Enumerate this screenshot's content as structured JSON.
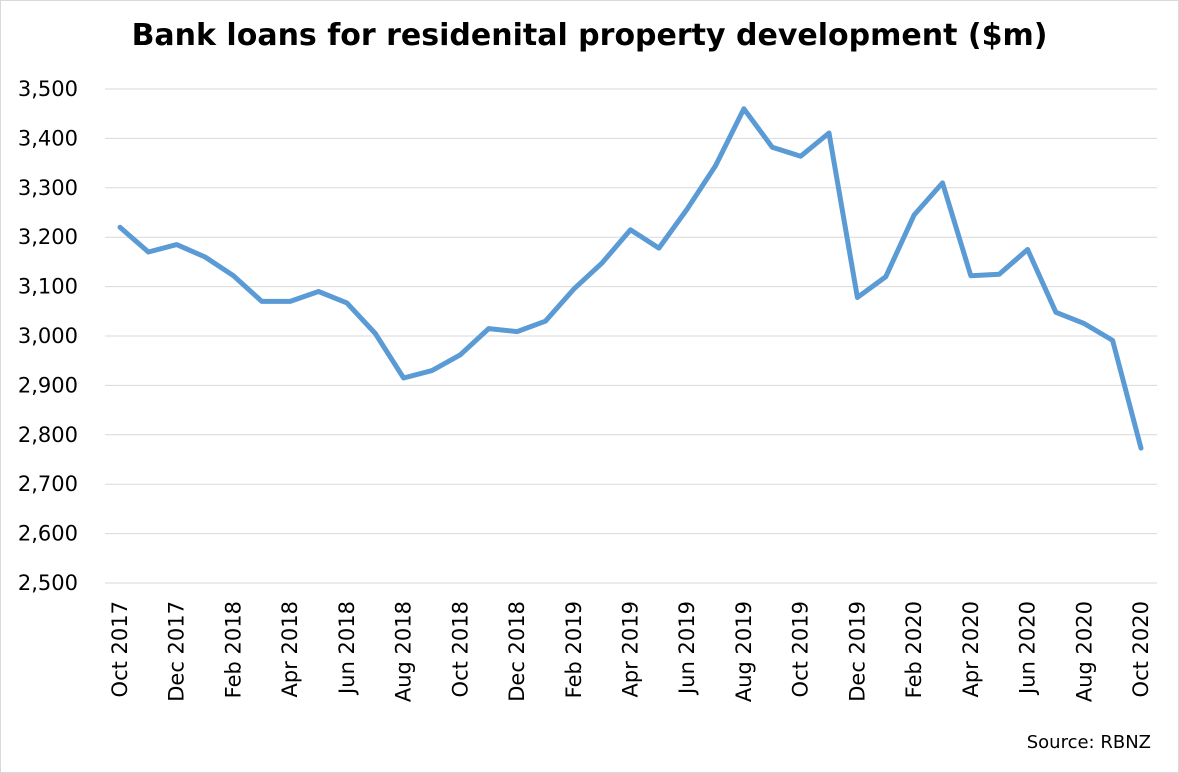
{
  "chart_data": {
    "type": "line",
    "title": "Bank loans for residenital property development ($m)",
    "source": "Source: RBNZ",
    "xlabel": "",
    "ylabel": "",
    "ylim": [
      2500,
      3500
    ],
    "ytick_step": 100,
    "ytick_labels": [
      "2,500",
      "2,600",
      "2,700",
      "2,800",
      "2,900",
      "3,000",
      "3,100",
      "3,200",
      "3,300",
      "3,400",
      "3,500"
    ],
    "grid": "horizontal",
    "line_color": "#5b9bd5",
    "x": [
      "Oct 2017",
      "Nov 2017",
      "Dec 2017",
      "Jan 2018",
      "Feb 2018",
      "Mar 2018",
      "Apr 2018",
      "May 2018",
      "Jun 2018",
      "Jul 2018",
      "Aug 2018",
      "Sep 2018",
      "Oct 2018",
      "Nov 2018",
      "Dec 2018",
      "Jan 2019",
      "Feb 2019",
      "Mar 2019",
      "Apr 2019",
      "May 2019",
      "Jun 2019",
      "Jul 2019",
      "Aug 2019",
      "Sep 2019",
      "Oct 2019",
      "Nov 2019",
      "Dec 2019",
      "Jan 2020",
      "Feb 2020",
      "Mar 2020",
      "Apr 2020",
      "May 2020",
      "Jun 2020",
      "Jul 2020",
      "Aug 2020",
      "Sep 2020",
      "Oct 2020"
    ],
    "x_tick_labels_shown": [
      "Oct 2017",
      "Dec 2017",
      "Feb 2018",
      "Apr 2018",
      "Jun 2018",
      "Aug 2018",
      "Oct 2018",
      "Dec 2018",
      "Feb 2019",
      "Apr 2019",
      "Jun 2019",
      "Aug 2019",
      "Oct 2019",
      "Dec 2019",
      "Feb 2020",
      "Apr 2020",
      "Jun 2020",
      "Aug 2020",
      "Oct 2020"
    ],
    "series": [
      {
        "values": [
          3220,
          3170,
          3185,
          3160,
          3122,
          3070,
          3070,
          3090,
          3067,
          3005,
          2915,
          2930,
          2962,
          3015,
          3009,
          3030,
          3095,
          3148,
          3215,
          3178,
          3257,
          3345,
          3460,
          3382,
          3364,
          3411,
          3078,
          3120,
          3245,
          3310,
          3122,
          3125,
          3175,
          3048,
          3025,
          2991,
          2773
        ]
      }
    ]
  }
}
